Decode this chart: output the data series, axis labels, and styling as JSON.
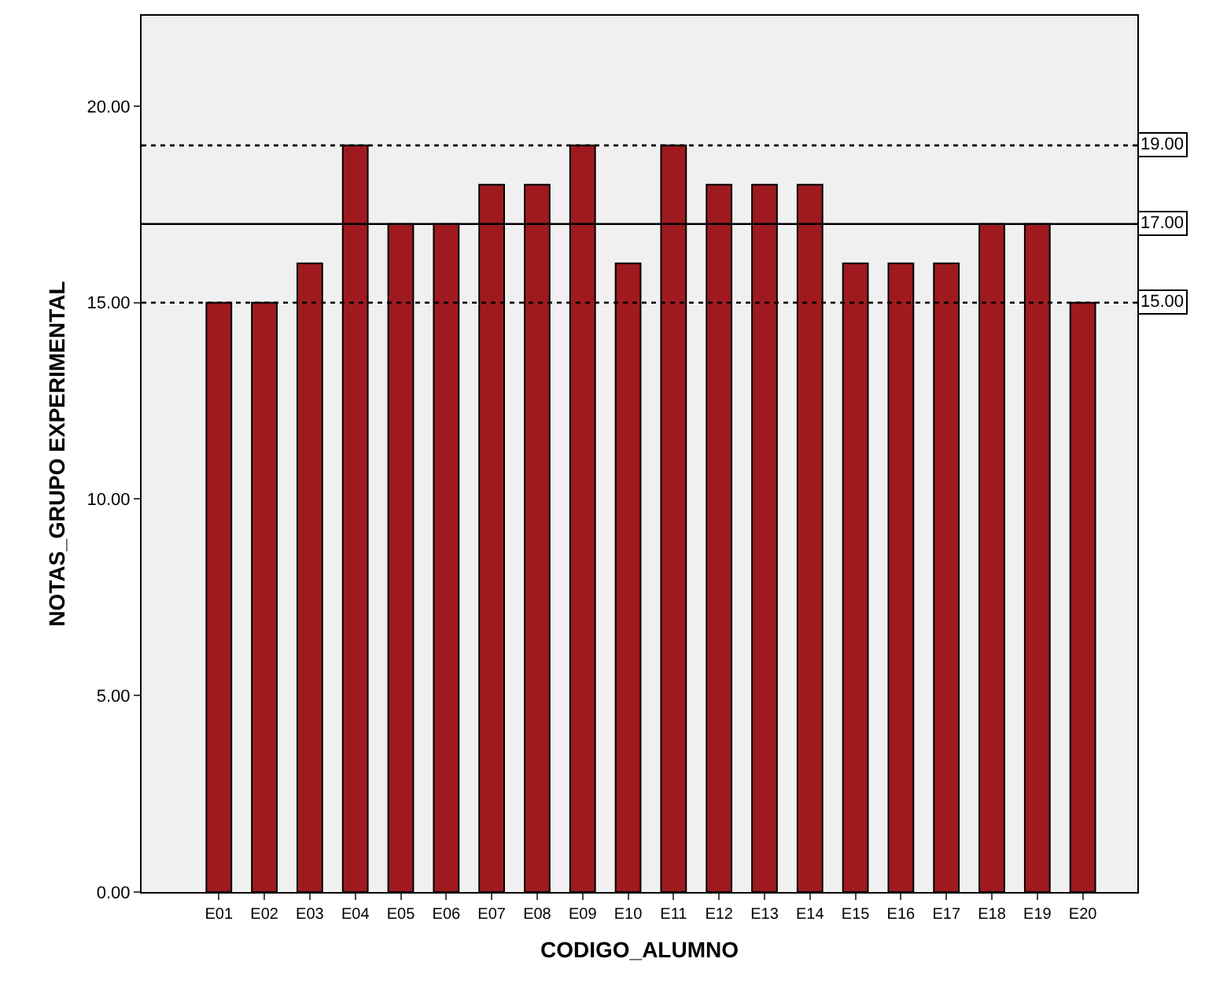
{
  "chart_data": {
    "type": "bar",
    "xlabel": "CODIGO_ALUMNO",
    "ylabel": "NOTAS_GRUPO EXPERIMENTAL",
    "categories": [
      "E01",
      "E02",
      "E03",
      "E04",
      "E05",
      "E06",
      "E07",
      "E08",
      "E09",
      "E10",
      "E11",
      "E12",
      "E13",
      "E14",
      "E15",
      "E16",
      "E17",
      "E18",
      "E19",
      "E20"
    ],
    "values": [
      15,
      15,
      16,
      19,
      17,
      17,
      18,
      18,
      19,
      16,
      19,
      18,
      18,
      18,
      16,
      16,
      16,
      17,
      17,
      15
    ],
    "color": "#9e1a1e",
    "ylim": [
      0,
      22.3
    ],
    "yticks": [
      {
        "value": 0,
        "label": "0.00"
      },
      {
        "value": 5,
        "label": "5.00"
      },
      {
        "value": 10,
        "label": "10.00"
      },
      {
        "value": 15,
        "label": "15.00"
      },
      {
        "value": 20,
        "label": "20.00"
      }
    ],
    "ref_lines": [
      {
        "axis": "y",
        "value": 19,
        "label": "19.00",
        "line_style": "dotted"
      },
      {
        "axis": "y",
        "value": 17,
        "label": "17.00",
        "line_style": "solid"
      },
      {
        "axis": "y",
        "value": 15,
        "label": "15.00",
        "line_style": "dotted"
      }
    ],
    "grid": false,
    "legend": false
  }
}
